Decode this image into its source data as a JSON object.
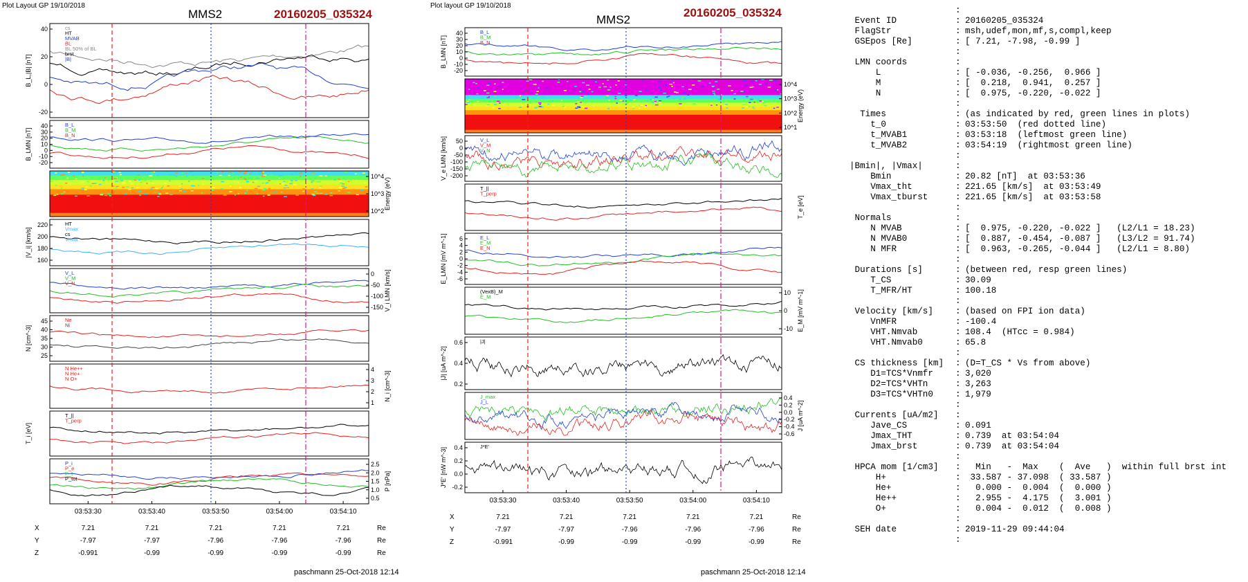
{
  "figure_left": {
    "header": "Plot Layout GP 19/10/2018",
    "spacecraft": "MMS2",
    "event": "20160205_035324",
    "footer": "paschmann 25-Oct-2018 12:14"
  },
  "figure_right": {
    "header": "Plot layout GP 19/10/2018",
    "spacecraft": "MMS2",
    "event": "20160205_035324",
    "footer": "paschmann 25-Oct-2018 12:14"
  },
  "colors": {
    "event": "#a01010",
    "red": "#e8201c",
    "green": "#20c020",
    "blue": "#1f3fd8",
    "magenta": "#e0108c"
  },
  "chart_data": [
    {
      "type": "line",
      "title": "MMS2 20160205_035324 (left column)",
      "x_ticks": [
        "03:53:30",
        "03:53:40",
        "03:53:50",
        "03:54:00",
        "03:54:10"
      ],
      "panels": [
        {
          "ylabel": "B_L,|B| [nT]",
          "yticks": [
            "40",
            "20",
            "0",
            "-20"
          ],
          "legend": [
            "cs",
            "HT",
            "MVAB",
            "BL",
            "BL 50% of BL",
            "brst",
            "|B|"
          ]
        },
        {
          "ylabel": "B_LMN [nT]",
          "yticks": [
            "40",
            "30",
            "20",
            "10",
            "0",
            "-10",
            "-20"
          ],
          "legend": [
            "B_L",
            "B_M",
            "B_N"
          ]
        },
        {
          "ylabel": "Energy (eV)",
          "yticks": [
            "10^4",
            "10^3",
            "10^2"
          ],
          "type": "heatmap"
        },
        {
          "ylabel": "|V_i| [km/s]",
          "yticks": [
            "220",
            "200",
            "180",
            "160"
          ],
          "legend": [
            "HT",
            "Vmax",
            "cs",
            "Vmax"
          ]
        },
        {
          "ylabel": "V_i LMN [km/s]",
          "yticks": [
            "0",
            "-50",
            "-100",
            "-150"
          ],
          "legend": [
            "V_L",
            "V_M",
            "V_N"
          ]
        },
        {
          "ylabel": "N [cm^-3]",
          "yticks": [
            "45",
            "40",
            "35",
            "30",
            "25"
          ],
          "legend": [
            "Ne",
            "Ni"
          ]
        },
        {
          "ylabel": "N_i [cm^-3]",
          "yticks": [
            "4",
            "3",
            "2",
            "1"
          ],
          "legend": [
            "N He++",
            "N He+",
            "N O+"
          ]
        },
        {
          "ylabel": "T_i [eV]",
          "yticks": [],
          "legend": [
            "T_||",
            "T_perp"
          ]
        },
        {
          "ylabel": "P [nPa]",
          "yticks": [
            "2.5",
            "2.0",
            "1.5",
            "1.0",
            "0.5"
          ],
          "legend": [
            "P_i",
            "P_e",
            "P_t",
            "P_tot"
          ]
        }
      ],
      "ephemeris": {
        "labels": [
          "X",
          "Y",
          "Z"
        ],
        "unit": "Re",
        "X": [
          "7.21",
          "7.21",
          "7.21",
          "7.21",
          "7.21"
        ],
        "Y": [
          "-7.97",
          "-7.97",
          "-7.96",
          "-7.96",
          "-7.96"
        ],
        "Z": [
          "-0.991",
          "-0.99",
          "-0.99",
          "-0.99",
          "-0.99"
        ]
      }
    },
    {
      "type": "line",
      "title": "MMS2 20160205_035324 (middle column)",
      "x_ticks": [
        "03:53:30",
        "03:53:40",
        "03:53:50",
        "03:54:00",
        "03:54:10"
      ],
      "panels": [
        {
          "ylabel": "B_LMN [nT]",
          "yticks": [
            "40",
            "30",
            "20",
            "10",
            "0",
            "-10",
            "-20"
          ],
          "legend": [
            "B_L",
            "B_M",
            "B_N"
          ]
        },
        {
          "ylabel": "Energy (eV)",
          "yticks": [
            "10^4",
            "10^3",
            "10^2",
            "10^1"
          ],
          "type": "heatmap"
        },
        {
          "ylabel": "V_e LMN [km/s]",
          "yticks": [
            "50",
            "0",
            "-50",
            "-100",
            "-150",
            "-200"
          ],
          "legend": [
            "V_L",
            "V_M",
            "V_N"
          ]
        },
        {
          "ylabel": "T_e [eV]",
          "yticks": [],
          "legend": [
            "T_||",
            "T_perp"
          ]
        },
        {
          "ylabel": "E_LMN [mV m^-1]",
          "yticks": [
            "6",
            "4",
            "2",
            "0",
            "-2",
            "-4",
            "-6"
          ],
          "legend": [
            "E_L",
            "E_M",
            "E_N"
          ]
        },
        {
          "ylabel": "E_M [mV m^-1]",
          "yticks": [
            "10",
            "0",
            "-10"
          ],
          "legend": [
            "(VexB)_M",
            "E_M"
          ]
        },
        {
          "ylabel": "|J| [uA m^-2]",
          "yticks": [
            "0.6",
            "0.4",
            "0.2"
          ],
          "legend": [
            "|J|"
          ]
        },
        {
          "ylabel": "J [uA m^-2]",
          "yticks": [
            "0.4",
            "0.2",
            "0.0",
            "-0.2",
            "-0.4",
            "-0.6"
          ],
          "legend": [
            "J_max",
            "J_L"
          ]
        },
        {
          "ylabel": "J*E' [nW m^-3]",
          "yticks": [
            "0.4",
            "0.2",
            "0.0",
            "-0.2"
          ],
          "legend": [
            "J*E'"
          ]
        }
      ],
      "ephemeris": {
        "labels": [
          "X",
          "Y",
          "Z"
        ],
        "unit": "Re",
        "X": [
          "7.21",
          "7.21",
          "7.21",
          "7.21",
          "7.21"
        ],
        "Y": [
          "-7.97",
          "-7.97",
          "-7.96",
          "-7.96",
          "-7.96"
        ],
        "Z": [
          "-0.991",
          "-0.99",
          "-0.99",
          "-0.99",
          "-0.99"
        ]
      }
    }
  ],
  "info_table": [
    {
      "k": "",
      "c": ":",
      "v": ""
    },
    {
      "k": " Event ID",
      "c": ":",
      "v": "20160205_035324"
    },
    {
      "k": " FlagStr",
      "c": ":",
      "v": "msh,udef,mon,mf,s,compl,keep"
    },
    {
      "k": " GSEpos [Re]",
      "c": ":",
      "v": "[ 7.21, -7.98, -0.99 ]"
    },
    {
      "k": "",
      "c": ":",
      "v": ""
    },
    {
      "k": " LMN coords",
      "c": ":",
      "v": ""
    },
    {
      "k": "     L",
      "c": ":",
      "v": "[ -0.036, -0.256,  0.966 ]"
    },
    {
      "k": "     M",
      "c": ":",
      "v": "[  0.218,  0.941,  0.257 ]"
    },
    {
      "k": "     N",
      "c": ":",
      "v": "[  0.975, -0.220, -0.022 ]"
    },
    {
      "k": "",
      "c": ":",
      "v": ""
    },
    {
      "k": "  Times",
      "c": ":",
      "v": "(as indicated by red, green lines in plots)"
    },
    {
      "k": "    t_0",
      "c": ":",
      "v": "03:53:50  (red dotted line)"
    },
    {
      "k": "    t_MVAB1",
      "c": ":",
      "v": "03:53:18  (leftmost green line)"
    },
    {
      "k": "    t_MVAB2",
      "c": ":",
      "v": "03:54:19  (rightmost green line)"
    },
    {
      "k": "",
      "c": ":",
      "v": ""
    },
    {
      "k": "|Bmin|, |Vmax|",
      "c": ":",
      "v": ""
    },
    {
      "k": "    Bmin",
      "c": ":",
      "v": "20.82 [nT]  at 03:53:36"
    },
    {
      "k": "    Vmax_tht",
      "c": ":",
      "v": "221.65 [km/s]  at 03:53:49"
    },
    {
      "k": "    Vmax_tburst",
      "c": ":",
      "v": "221.65 [km/s]  at 03:53:58"
    },
    {
      "k": "",
      "c": ":",
      "v": ""
    },
    {
      "k": " Normals",
      "c": ":",
      "v": ""
    },
    {
      "k": "    N MVAB",
      "c": ":",
      "v": "[  0.975, -0.220, -0.022 ]   (L2/L1 = 18.23)"
    },
    {
      "k": "    N MVAB0",
      "c": ":",
      "v": "[  0.887, -0.454, -0.087 ]   (L3/L2 = 91.74)"
    },
    {
      "k": "    N MFR",
      "c": ":",
      "v": "[  0.963, -0.265, -0.044 ]   (L2/L1 = 8.80)"
    },
    {
      "k": "",
      "c": ":",
      "v": ""
    },
    {
      "k": " Durations [s]",
      "c": ":",
      "v": "(between red, resp green lines)"
    },
    {
      "k": "    T_CS",
      "c": ":",
      "v": "30.09"
    },
    {
      "k": "    T_MFR/HT",
      "c": ":",
      "v": "100.18"
    },
    {
      "k": "",
      "c": ":",
      "v": ""
    },
    {
      "k": " Velocity [km/s]",
      "c": ":",
      "v": "(based on FPI ion data)"
    },
    {
      "k": "    VnMFR",
      "c": ":",
      "v": "-100.4"
    },
    {
      "k": "    VHT.Nmvab",
      "c": ":",
      "v": "108.4  (HTcc = 0.984)"
    },
    {
      "k": "    VHT.Nmvab0",
      "c": ":",
      "v": "65.8"
    },
    {
      "k": "",
      "c": ":",
      "v": ""
    },
    {
      "k": " CS thickness [km]",
      "c": ":",
      "v": "(D=T_CS * Vs from above)"
    },
    {
      "k": "    D1=TCS*Vnmfr",
      "c": ":",
      "v": "3,020"
    },
    {
      "k": "    D2=TCS*VHTn",
      "c": ":",
      "v": "3,263"
    },
    {
      "k": "    D3=TCS*VHTn0",
      "c": ":",
      "v": "1,979"
    },
    {
      "k": "",
      "c": ":",
      "v": ""
    },
    {
      "k": " Currents [uA/m2]",
      "c": ":",
      "v": ""
    },
    {
      "k": "    Jave_CS",
      "c": ":",
      "v": "0.091"
    },
    {
      "k": "    Jmax_THT",
      "c": ":",
      "v": "0.739  at 03:54:04"
    },
    {
      "k": "    Jmax_brst",
      "c": ":",
      "v": "0.739  at 03:54:04"
    },
    {
      "k": "",
      "c": ":",
      "v": ""
    },
    {
      "k": " HPCA mom [1/cm3]",
      "c": ":",
      "v": "  Min   -  Max    (  Ave   )  within full brst int"
    },
    {
      "k": "     H+",
      "c": ":",
      "v": " 33.587 - 37.098  ( 33.587 )"
    },
    {
      "k": "     He+",
      "c": ":",
      "v": "  0.000 -  0.004  (  0.000 )"
    },
    {
      "k": "     He++",
      "c": ":",
      "v": "  2.955 -  4.175  (  3.001 )"
    },
    {
      "k": "     O+",
      "c": ":",
      "v": "  0.004 -  0.012  (  0.008 )"
    },
    {
      "k": "",
      "c": ":",
      "v": ""
    },
    {
      "k": " SEH date",
      "c": ":",
      "v": "2019-11-29 09:44:04"
    },
    {
      "k": "",
      "c": ":",
      "v": ""
    }
  ]
}
